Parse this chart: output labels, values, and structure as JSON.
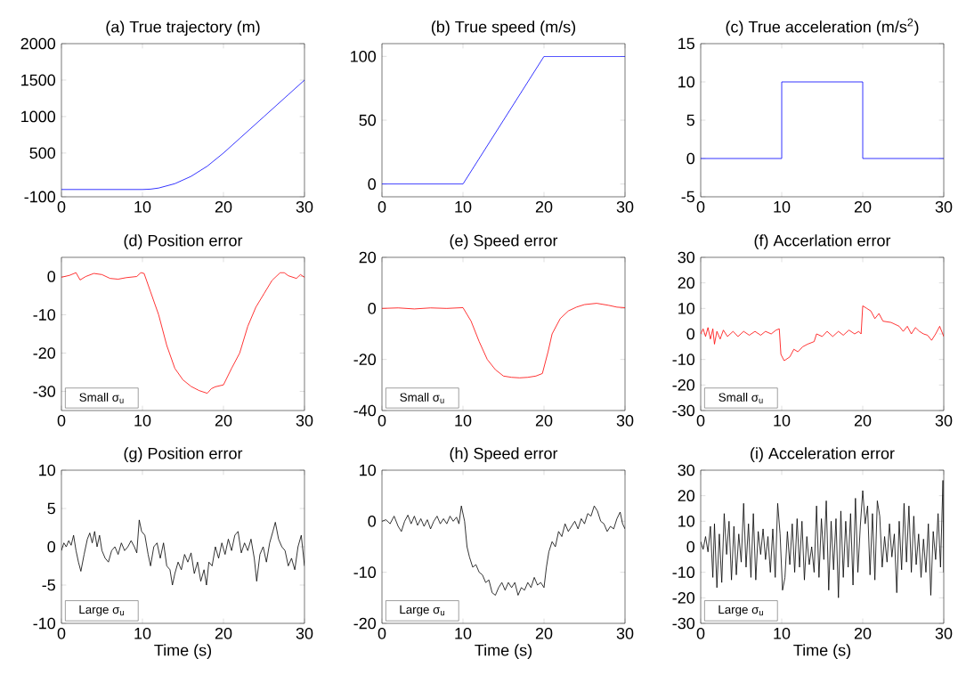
{
  "chart_data": [
    {
      "type": "line",
      "title": "(a)  True trajectory (m)",
      "color": "#0000ff",
      "xlim": [
        0,
        30
      ],
      "xticks": [
        0,
        10,
        20,
        30
      ],
      "ylim": [
        -100,
        2000
      ],
      "yticks": [
        -100,
        500,
        1000,
        1500,
        2000
      ],
      "x": [
        0,
        10,
        11,
        12,
        14,
        16,
        18,
        20,
        22,
        25,
        28,
        30
      ],
      "values": [
        0,
        0,
        5,
        20,
        80,
        180,
        320,
        500,
        700,
        1000,
        1300,
        1500
      ]
    },
    {
      "type": "line",
      "title": "(b)  True speed (m/s)",
      "color": "#0000ff",
      "xlim": [
        0,
        30
      ],
      "xticks": [
        0,
        10,
        20,
        30
      ],
      "ylim": [
        -10,
        110
      ],
      "yticks": [
        0,
        50,
        100
      ],
      "x": [
        0,
        10,
        20,
        30
      ],
      "values": [
        0,
        0,
        100,
        100
      ]
    },
    {
      "type": "line",
      "title": "(c)  True acceleration (m/s$^{2}$)",
      "color": "#0000ff",
      "xlim": [
        0,
        30
      ],
      "xticks": [
        0,
        10,
        20,
        30
      ],
      "ylim": [
        -5,
        15
      ],
      "yticks": [
        -5,
        0,
        5,
        10,
        15
      ],
      "x": [
        0,
        10,
        10,
        20,
        20,
        30
      ],
      "values": [
        0,
        0,
        10,
        10,
        0,
        0
      ]
    },
    {
      "type": "line",
      "title": "(d)  Position error",
      "color": "#ff0000",
      "xlim": [
        0,
        30
      ],
      "xticks": [
        0,
        10,
        20,
        30
      ],
      "ylim": [
        -35,
        5
      ],
      "yticks": [
        -30,
        -20,
        -10,
        0
      ],
      "annotations": [
        "Small σ$_{u}$"
      ],
      "x": [
        0,
        1,
        1.8,
        2.3,
        3,
        4,
        5,
        6,
        7,
        8,
        9.3,
        9.8,
        10.2,
        11,
        12,
        13,
        14,
        15,
        16,
        17,
        18,
        18.5,
        19,
        20,
        21,
        22,
        23,
        24,
        25,
        26,
        27,
        27.5,
        28,
        29,
        29.5,
        30
      ],
      "values": [
        -0.2,
        0.3,
        1,
        -0.9,
        0,
        0.8,
        0.5,
        -0.5,
        -0.7,
        -0.3,
        0,
        1,
        0.8,
        -4,
        -10,
        -18,
        -24,
        -27,
        -28.7,
        -29.8,
        -30.5,
        -29.3,
        -28.8,
        -28.3,
        -24,
        -20,
        -13,
        -8,
        -4.5,
        -1,
        1,
        1,
        0.2,
        -0.5,
        0.5,
        -0.2
      ]
    },
    {
      "type": "line",
      "title": "(e)  Speed error",
      "color": "#ff0000",
      "xlim": [
        0,
        30
      ],
      "xticks": [
        0,
        10,
        20,
        30
      ],
      "ylim": [
        -40,
        20
      ],
      "yticks": [
        -40,
        -20,
        0,
        20
      ],
      "annotations": [
        "Small σ$_{u}$"
      ],
      "x": [
        0,
        2,
        4,
        6,
        8,
        10,
        11,
        12,
        13,
        14,
        15,
        16,
        17,
        18,
        19,
        19.8,
        20.5,
        21,
        22,
        23,
        24,
        25,
        26.5,
        28,
        29,
        30
      ],
      "values": [
        0,
        0.2,
        -0.2,
        0.2,
        0,
        0.3,
        -5,
        -13,
        -20,
        -24,
        -26.5,
        -27,
        -27.2,
        -27,
        -26.5,
        -25.5,
        -17,
        -10,
        -4,
        -1,
        0.5,
        1.5,
        2,
        1.2,
        0.5,
        0.3
      ]
    },
    {
      "type": "line",
      "title": "(f)  Accerlation error",
      "color": "#ff0000",
      "xlim": [
        0,
        30
      ],
      "xticks": [
        0,
        10,
        20,
        30
      ],
      "ylim": [
        -30,
        30
      ],
      "yticks": [
        -30,
        -20,
        -10,
        0,
        10,
        20,
        30
      ],
      "annotations": [
        "Small σ$_{u}$"
      ],
      "x": [
        0,
        0.3,
        0.6,
        0.9,
        1.2,
        1.5,
        1.7,
        2,
        2.4,
        2.8,
        3.3,
        4,
        4.6,
        5.3,
        6,
        6.7,
        7.4,
        8,
        8.7,
        9.3,
        9.7,
        9.9,
        10.3,
        11,
        11.5,
        12,
        12.6,
        13.2,
        14,
        14.3,
        15,
        15.6,
        16.3,
        17,
        17.6,
        18.3,
        19,
        19.5,
        19.8,
        20,
        20.5,
        21,
        21.5,
        22,
        22.5,
        23.5,
        24.5,
        25,
        25.5,
        26,
        26.5,
        27,
        27.5,
        28,
        28.5,
        29,
        29.5,
        30
      ],
      "values": [
        0,
        2,
        -1,
        2.5,
        -2,
        2,
        -4,
        1,
        -2,
        1.5,
        -1,
        1,
        -1,
        1,
        -0.5,
        1,
        -0.5,
        1,
        0,
        1.5,
        2,
        -8,
        -10.5,
        -9,
        -6,
        -7,
        -5,
        -4,
        -3,
        0,
        -1,
        1,
        -1,
        1,
        -0.5,
        1.5,
        0,
        1,
        0,
        11,
        10,
        9,
        6,
        8,
        5,
        4.5,
        3,
        1,
        3,
        0,
        2.5,
        1,
        0,
        -0.5,
        -2.5,
        0,
        3,
        -1
      ]
    },
    {
      "type": "line",
      "title": "(g)  Position error",
      "xlabel": "Time (s)",
      "color": "#000000",
      "xlim": [
        0,
        30
      ],
      "xticks": [
        0,
        10,
        20,
        30
      ],
      "ylim": [
        -10,
        10
      ],
      "yticks": [
        -10,
        -5,
        0,
        5,
        10
      ],
      "annotations": [
        "Large σ$_{u}$"
      ],
      "x": [
        0,
        0.3,
        0.6,
        0.9,
        1.2,
        1.5,
        1.8,
        2.1,
        2.4,
        2.8,
        3.2,
        3.5,
        3.8,
        4.1,
        4.4,
        4.7,
        5,
        5.4,
        5.8,
        6.2,
        6.6,
        7,
        7.4,
        7.8,
        8.2,
        8.6,
        9,
        9.3,
        9.6,
        9.9,
        10.3,
        10.7,
        11,
        11.4,
        11.8,
        12.2,
        12.6,
        13,
        13.4,
        13.7,
        14,
        14.4,
        14.8,
        15.2,
        15.6,
        16,
        16.4,
        16.8,
        17.2,
        17.6,
        17.9,
        18.2,
        18.6,
        19,
        19.4,
        19.8,
        20.2,
        20.6,
        21,
        21.4,
        21.8,
        22.2,
        22.6,
        23,
        23.4,
        23.8,
        24.1,
        24.5,
        24.9,
        25.3,
        25.7,
        26.1,
        26.4,
        26.8,
        27.2,
        27.6,
        28,
        28.4,
        28.8,
        29.2,
        29.6,
        30
      ],
      "values": [
        -0.5,
        0.5,
        0,
        0.8,
        0.2,
        1.5,
        -0.5,
        -2,
        -3.2,
        -1,
        1,
        1.8,
        0.5,
        2,
        0,
        1.5,
        -0.5,
        -1.5,
        -2,
        -0.5,
        0,
        -1,
        0.5,
        -0.5,
        0,
        0.8,
        0,
        -0.8,
        3.5,
        2,
        1.5,
        -1,
        -2.5,
        0,
        0.5,
        -1.5,
        0.5,
        -2.5,
        -3,
        -5,
        -3.5,
        -2,
        -3,
        -1,
        -2,
        -0.8,
        -3.5,
        -2,
        -4.5,
        -3,
        -5,
        -2,
        -2.5,
        0,
        -1.5,
        0.5,
        -1,
        1,
        -0.5,
        1.5,
        2,
        -0.8,
        0.5,
        -0.5,
        1,
        -1.5,
        -4.5,
        -1,
        0,
        -2,
        0.5,
        2,
        3.2,
        1,
        0,
        -0.5,
        -2.5,
        -1.5,
        -3,
        0,
        1.5,
        -2.5
      ]
    },
    {
      "type": "line",
      "title": "(h)  Speed error",
      "xlabel": "Time (s)",
      "color": "#000000",
      "xlim": [
        0,
        30
      ],
      "xticks": [
        0,
        10,
        20,
        30
      ],
      "ylim": [
        -20,
        10
      ],
      "yticks": [
        -20,
        -10,
        0,
        10
      ],
      "annotations": [
        "Large σ$_{u}$"
      ],
      "x": [
        0,
        0.5,
        1,
        1.5,
        2,
        2.4,
        2.8,
        3.2,
        3.6,
        4,
        4.4,
        4.8,
        5.2,
        5.6,
        6,
        6.4,
        6.8,
        7.2,
        7.6,
        8,
        8.4,
        8.8,
        9.2,
        9.5,
        9.8,
        10.2,
        10.5,
        10.8,
        11.2,
        11.6,
        12,
        12.4,
        12.8,
        13.2,
        13.6,
        14,
        14.4,
        14.8,
        15.2,
        15.6,
        16,
        16.4,
        16.8,
        17.2,
        17.6,
        18,
        18.4,
        18.8,
        19.2,
        19.6,
        20,
        20.3,
        20.6,
        21,
        21.4,
        21.8,
        22.2,
        22.6,
        23,
        23.4,
        23.8,
        24.2,
        24.6,
        25,
        25.4,
        25.8,
        26.2,
        26.6,
        27,
        27.4,
        27.8,
        28.2,
        28.6,
        29,
        29.4,
        29.7,
        30
      ],
      "values": [
        0,
        0.3,
        -0.5,
        1,
        -1,
        -2,
        0,
        1.2,
        -0.5,
        1,
        -0.8,
        0.5,
        -1,
        0.3,
        -1.5,
        0,
        1,
        -0.5,
        0.5,
        -0.5,
        1,
        0,
        0.8,
        -0.5,
        3,
        0,
        -5,
        -7,
        -9,
        -8.5,
        -10,
        -10.5,
        -12,
        -11.5,
        -14,
        -14.5,
        -13,
        -12,
        -13.5,
        -12,
        -13,
        -12,
        -14.5,
        -13,
        -13.5,
        -12,
        -13,
        -11,
        -12.5,
        -12,
        -13,
        -9,
        -6,
        -4,
        -5,
        -2,
        -3,
        -0.5,
        -2,
        -1,
        0,
        -1.5,
        0.5,
        -0.5,
        1.5,
        1,
        3,
        2,
        0,
        -0.5,
        -2,
        -1,
        -1.5,
        0.5,
        1.8,
        -0.5,
        -1.5
      ]
    },
    {
      "type": "line",
      "title": "(i)  Acceleration error",
      "xlabel": "Time (s)",
      "color": "#000000",
      "xlim": [
        0,
        30
      ],
      "xticks": [
        0,
        10,
        20,
        30
      ],
      "ylim": [
        -30,
        30
      ],
      "yticks": [
        -30,
        -20,
        -10,
        0,
        10,
        20,
        30
      ],
      "annotations": [
        "Large σ$_{u}$"
      ],
      "x": [
        0,
        0.3,
        0.6,
        0.9,
        1.2,
        1.5,
        1.7,
        2,
        2.3,
        2.6,
        2.9,
        3.2,
        3.5,
        3.8,
        4.1,
        4.4,
        4.7,
        5,
        5.3,
        5.6,
        5.9,
        6.2,
        6.5,
        6.8,
        7.1,
        7.4,
        7.7,
        8,
        8.3,
        8.6,
        8.9,
        9.2,
        9.5,
        9.8,
        10.1,
        10.4,
        10.7,
        11,
        11.3,
        11.6,
        11.9,
        12.2,
        12.5,
        12.8,
        13.1,
        13.4,
        13.7,
        14,
        14.3,
        14.6,
        14.9,
        15.2,
        15.5,
        15.8,
        16.1,
        16.4,
        16.7,
        17,
        17.3,
        17.6,
        17.9,
        18.2,
        18.5,
        18.8,
        19.1,
        19.4,
        19.7,
        20,
        20.3,
        20.6,
        20.9,
        21.2,
        21.5,
        21.8,
        22.1,
        22.4,
        22.7,
        23,
        23.3,
        23.6,
        23.9,
        24.2,
        24.5,
        24.8,
        25.1,
        25.4,
        25.7,
        26,
        26.3,
        26.6,
        26.9,
        27.2,
        27.5,
        27.8,
        28.1,
        28.4,
        28.7,
        29,
        29.3,
        29.6,
        29.9,
        30
      ],
      "values": [
        2,
        -1,
        4,
        -2,
        8,
        -12,
        9,
        -16,
        5,
        -14,
        13,
        -3,
        10,
        -13,
        8,
        -11,
        5,
        -6,
        17,
        -8,
        9,
        -12,
        13,
        -13,
        6,
        -3,
        7,
        -5,
        4,
        -10,
        7,
        -12,
        17,
        5,
        -17,
        -12,
        6,
        -7,
        9,
        -10,
        11,
        -8,
        10,
        -13,
        4,
        -7,
        0,
        -10,
        16,
        -12,
        11,
        -5,
        18,
        -17,
        10,
        -9,
        11,
        -20,
        14,
        -12,
        10,
        -8,
        13,
        -15,
        19,
        -10,
        8,
        22,
        9,
        16,
        -11,
        13,
        -13,
        18,
        12,
        -8,
        4,
        -6,
        9,
        -4,
        5,
        -18,
        10,
        -9,
        17,
        -6,
        16,
        -10,
        12,
        -7,
        5,
        -12,
        3,
        -10,
        9,
        -19,
        6,
        -5,
        13,
        -8,
        26,
        -10
      ]
    }
  ]
}
